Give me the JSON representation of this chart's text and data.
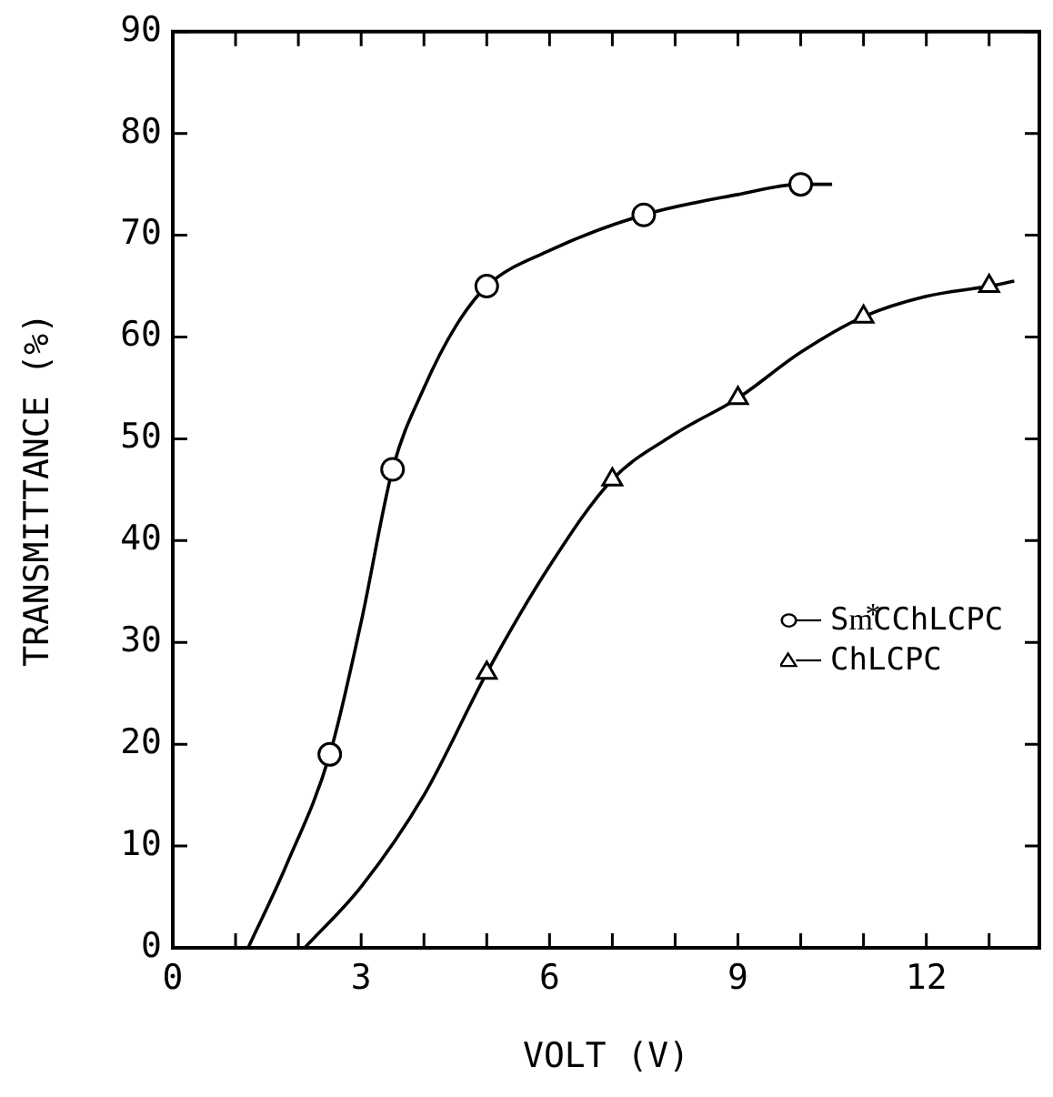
{
  "chart_data": {
    "type": "scatter",
    "xlabel": "VOLT (V)",
    "ylabel": "TRANSMITTANCE (%)",
    "xlim": [
      0,
      13.8
    ],
    "xticks": [
      0,
      3,
      6,
      9,
      12
    ],
    "ylim": [
      0,
      90
    ],
    "yticks": [
      0,
      10,
      20,
      30,
      40,
      50,
      60,
      70,
      80,
      90
    ],
    "grid": false,
    "legend": "right",
    "line_style": "solid",
    "series": [
      {
        "type": "line",
        "marker": "none",
        "color": "#000000",
        "x": [
          1.2,
          1.8,
          2.5,
          3,
          3.5,
          4,
          4.5,
          5,
          6,
          7.5,
          9,
          10,
          10.5
        ],
        "values": [
          0,
          8,
          19,
          32,
          47,
          55,
          61,
          65,
          68.5,
          72,
          74,
          75,
          75
        ]
      },
      {
        "type": "line",
        "marker": "none",
        "color": "#000000",
        "x": [
          2.1,
          3,
          4,
          5,
          6,
          7,
          8,
          9,
          10,
          11,
          12,
          13,
          13.4
        ],
        "values": [
          0,
          6,
          15,
          27,
          37.5,
          46,
          50.5,
          54,
          58.5,
          62,
          64,
          65,
          65.5
        ]
      },
      {
        "name": "Sm⃰CChLCPC",
        "marker": "circle",
        "color": "#000000",
        "x": [
          2.5,
          3.5,
          5,
          7.5,
          10
        ],
        "values": [
          19,
          47,
          65,
          72,
          75
        ]
      },
      {
        "name": "ChLCPC",
        "marker": "triangle",
        "color": "#000000",
        "x": [
          5,
          7,
          9,
          11,
          13
        ],
        "values": [
          27,
          46,
          54,
          62,
          65
        ]
      }
    ]
  }
}
